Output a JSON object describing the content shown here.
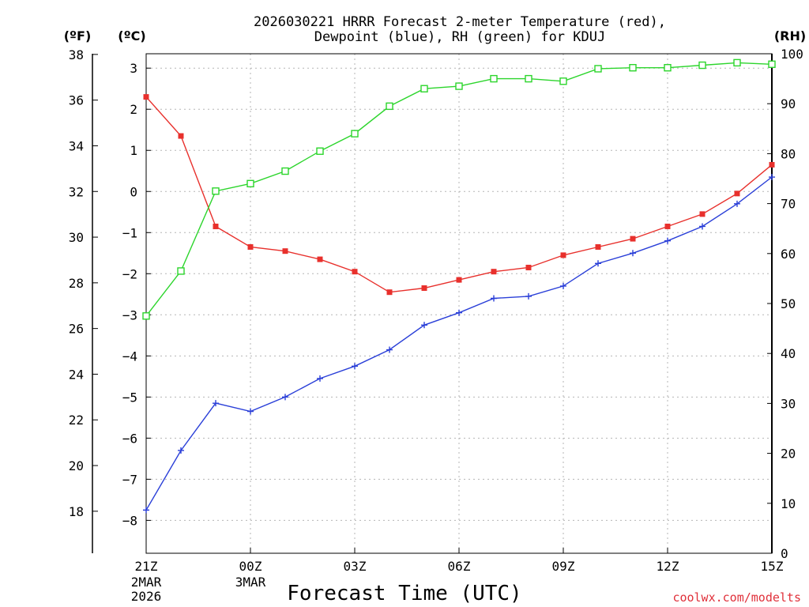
{
  "chart_data": {
    "type": "line",
    "title": [
      "2026030221 HRRR Forecast 2-meter Temperature (red),",
      "Dewpoint (blue), RH (green) for KDUJ"
    ],
    "xlabel": "Forecast Time (UTC)",
    "credit": "coolwx.com/modelts",
    "units": {
      "fahrenheit": "(ºF)",
      "celsius": "(ºC)",
      "rh": "(RH)"
    },
    "x_hours": [
      0,
      1,
      2,
      3,
      4,
      5,
      6,
      7,
      8,
      9,
      10,
      11,
      12,
      13,
      14,
      15,
      16,
      17,
      18
    ],
    "x_ticks": [
      {
        "hour": 0,
        "label": "21Z",
        "sub": [
          "2MAR",
          "2026"
        ]
      },
      {
        "hour": 3,
        "label": "00Z",
        "sub": [
          "3MAR"
        ]
      },
      {
        "hour": 6,
        "label": "03Z",
        "sub": []
      },
      {
        "hour": 9,
        "label": "06Z",
        "sub": []
      },
      {
        "hour": 12,
        "label": "09Z",
        "sub": []
      },
      {
        "hour": 15,
        "label": "12Z",
        "sub": []
      },
      {
        "hour": 18,
        "label": "15Z",
        "sub": []
      }
    ],
    "celsius_axis": {
      "min": -8.8,
      "max": 3.35,
      "ticks": [
        3,
        2,
        1,
        0,
        -1,
        -2,
        -3,
        -4,
        -5,
        -6,
        -7,
        -8
      ]
    },
    "fahrenheit_ticks": [
      38,
      36,
      34,
      32,
      30,
      28,
      26,
      24,
      22,
      20,
      18
    ],
    "rh_axis": {
      "min": 0,
      "max": 100,
      "ticks": [
        100,
        90,
        80,
        70,
        60,
        50,
        40,
        30,
        20,
        10,
        0
      ]
    },
    "series": [
      {
        "name": "Temperature",
        "axis": "celsius",
        "color": "#e8302c",
        "marker": "filled-square",
        "values": [
          2.3,
          1.35,
          -0.85,
          -1.35,
          -1.45,
          -1.65,
          -1.95,
          -2.45,
          -2.35,
          -2.15,
          -1.95,
          -1.85,
          -1.55,
          -1.35,
          -1.15,
          -0.85,
          -0.55,
          -0.05,
          0.65
        ]
      },
      {
        "name": "Dewpoint",
        "axis": "celsius",
        "color": "#2a3fd8",
        "marker": "plus",
        "values": [
          -7.75,
          -6.3,
          -5.15,
          -5.35,
          -5.0,
          -4.55,
          -4.25,
          -3.85,
          -3.25,
          -2.95,
          -2.6,
          -2.55,
          -2.3,
          -1.75,
          -1.5,
          -1.2,
          -0.85,
          -0.3,
          0.35
        ]
      },
      {
        "name": "RH",
        "axis": "rh",
        "color": "#2cd52c",
        "marker": "open-square",
        "values": [
          47.5,
          56.5,
          72.5,
          74,
          76.5,
          80.5,
          84,
          89.5,
          93,
          93.5,
          95,
          95,
          94.5,
          97,
          97.2,
          97.2,
          97.7,
          98.2,
          97.9
        ]
      }
    ]
  }
}
